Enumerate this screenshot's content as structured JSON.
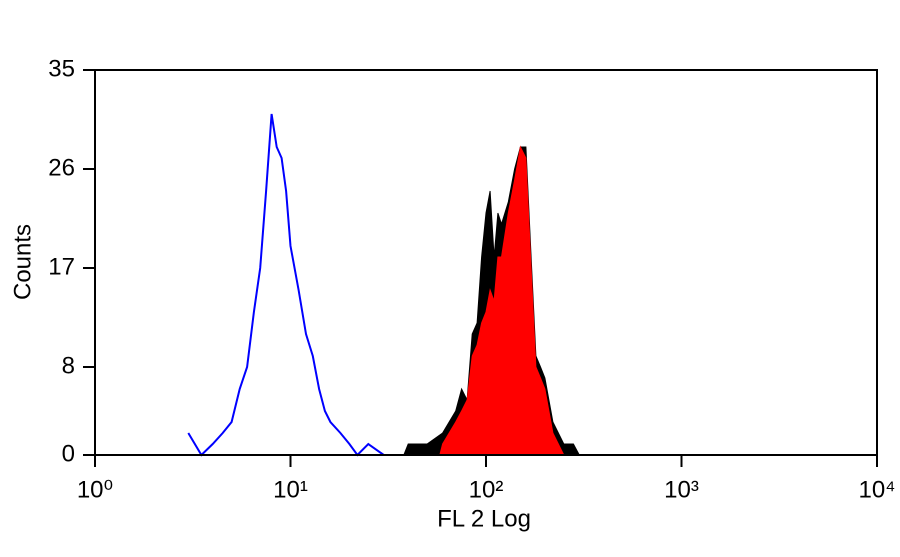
{
  "chart_data": {
    "type": "histogram",
    "xlabel": "FL 2 Log",
    "ylabel": "Counts",
    "xscale": "log",
    "xlim": [
      1,
      10000
    ],
    "ylim": [
      0,
      35
    ],
    "xticks": [
      {
        "value": 1,
        "label": "10⁰"
      },
      {
        "value": 10,
        "label": "10¹"
      },
      {
        "value": 100,
        "label": "10²"
      },
      {
        "value": 1000,
        "label": "10³"
      },
      {
        "value": 10000,
        "label": "10⁴"
      }
    ],
    "yticks": [
      0,
      8,
      17,
      26,
      35
    ],
    "grid": false,
    "series": [
      {
        "color": "#000000",
        "fill": true,
        "x": [
          38,
          40,
          50,
          60,
          70,
          75,
          80,
          85,
          90,
          95,
          100,
          105,
          110,
          115,
          120,
          130,
          140,
          150,
          160,
          170,
          180,
          190,
          200,
          220,
          250,
          280,
          300
        ],
        "values": [
          0,
          1,
          1,
          2,
          4,
          6,
          5,
          11,
          12,
          18,
          22,
          24,
          18,
          22,
          21,
          23,
          26,
          28,
          28,
          18,
          9,
          8,
          7,
          3,
          1,
          1,
          0
        ]
      },
      {
        "color": "#ff0000",
        "fill": true,
        "x": [
          58,
          60,
          70,
          75,
          80,
          85,
          90,
          95,
          100,
          105,
          110,
          115,
          120,
          130,
          140,
          150,
          160,
          170,
          180,
          190,
          200,
          220,
          250
        ],
        "values": [
          0,
          1,
          3,
          4,
          5,
          9,
          10,
          12,
          13,
          15,
          14,
          18,
          18,
          22,
          25,
          28,
          27,
          17,
          8,
          7,
          6,
          2,
          0
        ]
      },
      {
        "color": "#0000ff",
        "fill": false,
        "x": [
          3.0,
          3.5,
          4,
          4.5,
          5,
          5.5,
          6,
          6.5,
          7,
          7.5,
          8,
          8.5,
          9,
          9.5,
          10,
          11,
          12,
          13,
          14,
          15,
          16,
          18,
          20,
          22,
          25,
          30
        ],
        "values": [
          2,
          0,
          1,
          2,
          3,
          6,
          8,
          13,
          17,
          24,
          31,
          28,
          27,
          24,
          19,
          15,
          11,
          9,
          6,
          4,
          3,
          2,
          1,
          0,
          1,
          0
        ]
      }
    ]
  }
}
